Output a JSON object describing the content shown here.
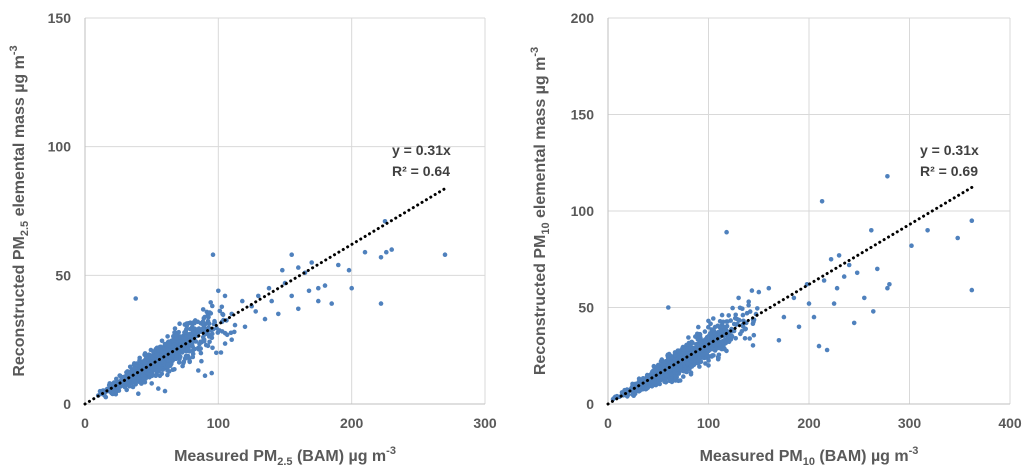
{
  "chart_data": [
    {
      "type": "scatter",
      "xlabel": {
        "pre": "Measured PM",
        "sub": "2.5",
        "mid": " (BAM) µg m",
        "sup": "-3"
      },
      "ylabel": {
        "pre": "Reconstructed PM",
        "sub": "2.5",
        "mid": " elemental mass µg m",
        "sup": "-3"
      },
      "xlim": [
        0,
        300
      ],
      "ylim": [
        0,
        150
      ],
      "xticks": [
        "0",
        "100",
        "200",
        "300"
      ],
      "yticks": [
        "0",
        "50",
        "100",
        "150"
      ],
      "grid": true,
      "point_color": "#4f81bd",
      "trendline": {
        "slope": 0.31,
        "x_end": 270,
        "equation": "y = 0.31x",
        "r2": "R² = 0.64"
      },
      "cluster": {
        "seed": 11,
        "count": 900,
        "slope": 0.31,
        "noise": 0.22,
        "x_min": 5,
        "x_max": 150,
        "x_mode": 55
      },
      "points": [
        [
          270,
          58
        ],
        [
          230,
          60
        ],
        [
          226,
          59
        ],
        [
          222,
          57
        ],
        [
          225,
          71
        ],
        [
          222,
          39
        ],
        [
          210,
          59
        ],
        [
          96,
          58
        ],
        [
          38,
          41
        ],
        [
          180,
          46
        ],
        [
          175,
          45
        ],
        [
          155,
          58
        ],
        [
          198,
          52
        ],
        [
          190,
          54
        ],
        [
          170,
          55
        ],
        [
          165,
          51
        ],
        [
          160,
          53
        ],
        [
          185,
          39
        ],
        [
          200,
          45
        ],
        [
          140,
          40
        ],
        [
          130,
          42
        ],
        [
          125,
          38
        ],
        [
          150,
          47
        ],
        [
          145,
          35
        ],
        [
          175,
          40
        ],
        [
          155,
          42
        ],
        [
          135,
          33
        ],
        [
          120,
          30
        ],
        [
          110,
          35
        ],
        [
          100,
          44
        ],
        [
          105,
          42
        ],
        [
          95,
          12
        ],
        [
          90,
          11
        ],
        [
          85,
          13
        ],
        [
          110,
          25
        ],
        [
          60,
          5
        ],
        [
          55,
          6
        ],
        [
          50,
          8
        ],
        [
          45,
          10
        ],
        [
          40,
          4
        ],
        [
          160,
          37
        ],
        [
          168,
          44
        ],
        [
          148,
          52
        ],
        [
          138,
          45
        ],
        [
          128,
          36
        ],
        [
          118,
          40
        ],
        [
          112,
          28
        ],
        [
          102,
          20
        ]
      ]
    },
    {
      "type": "scatter",
      "xlabel": {
        "pre": "Measured PM",
        "sub": "10",
        "mid": " (BAM) µg m",
        "sup": "-3"
      },
      "ylabel": {
        "pre": "Reconstructed PM",
        "sub": "10",
        "mid": " elemental mass µg m",
        "sup": "-3"
      },
      "xlim": [
        0,
        400
      ],
      "ylim": [
        0,
        200
      ],
      "xticks": [
        "0",
        "100",
        "200",
        "300",
        "400"
      ],
      "yticks": [
        "0",
        "50",
        "100",
        "150",
        "200"
      ],
      "grid": true,
      "point_color": "#4f81bd",
      "trendline": {
        "slope": 0.31,
        "x_end": 365,
        "equation": "y = 0.31x",
        "r2": "R² = 0.69"
      },
      "cluster": {
        "seed": 23,
        "count": 1000,
        "slope": 0.31,
        "noise": 0.22,
        "x_min": 3,
        "x_max": 220,
        "x_mode": 75
      },
      "points": [
        [
          278,
          118
        ],
        [
          213,
          105
        ],
        [
          118,
          89
        ],
        [
          362,
          95
        ],
        [
          362,
          59
        ],
        [
          348,
          86
        ],
        [
          318,
          90
        ],
        [
          302,
          82
        ],
        [
          280,
          62
        ],
        [
          278,
          60
        ],
        [
          264,
          48
        ],
        [
          262,
          90
        ],
        [
          245,
          42
        ],
        [
          240,
          72
        ],
        [
          235,
          66
        ],
        [
          230,
          77
        ],
        [
          225,
          52
        ],
        [
          218,
          28
        ],
        [
          210,
          30
        ],
        [
          205,
          45
        ],
        [
          198,
          62
        ],
        [
          190,
          40
        ],
        [
          185,
          55
        ],
        [
          175,
          45
        ],
        [
          170,
          33
        ],
        [
          160,
          60
        ],
        [
          150,
          58
        ],
        [
          140,
          53
        ],
        [
          130,
          55
        ],
        [
          120,
          35
        ],
        [
          110,
          24
        ],
        [
          100,
          20
        ],
        [
          60,
          50
        ],
        [
          58,
          15
        ],
        [
          70,
          12
        ],
        [
          255,
          55
        ],
        [
          248,
          68
        ],
        [
          268,
          70
        ],
        [
          222,
          75
        ],
        [
          228,
          60
        ],
        [
          200,
          52
        ],
        [
          215,
          64
        ]
      ]
    }
  ]
}
